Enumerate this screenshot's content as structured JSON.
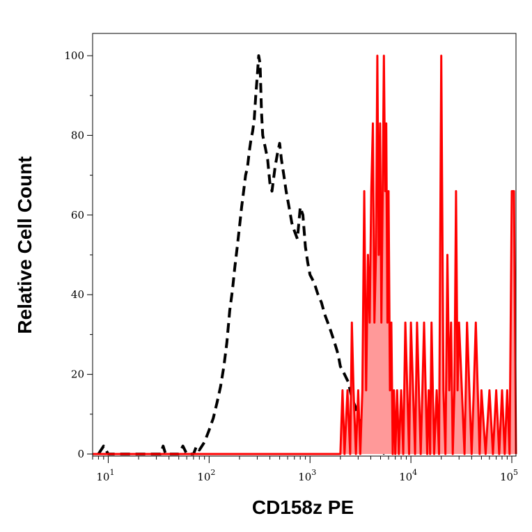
{
  "chart_data": {
    "type": "area",
    "title": "",
    "xlabel": "CD158z PE",
    "ylabel": "Relative Cell Count",
    "x_scale": "log",
    "xlim": [
      7,
      110000
    ],
    "ylim": [
      0,
      100
    ],
    "grid": false,
    "x_ticks": [
      {
        "value": 10,
        "base": "10",
        "exp": "1"
      },
      {
        "value": 100,
        "base": "10",
        "exp": "2"
      },
      {
        "value": 1000,
        "base": "10",
        "exp": "3"
      },
      {
        "value": 10000,
        "base": "10",
        "exp": "4"
      },
      {
        "value": 100000,
        "base": "10",
        "exp": "5"
      }
    ],
    "y_ticks": [
      {
        "value": 0,
        "label": "0"
      },
      {
        "value": 20,
        "label": "20"
      },
      {
        "value": 40,
        "label": "40"
      },
      {
        "value": 60,
        "label": "60"
      },
      {
        "value": 80,
        "label": "80"
      },
      {
        "value": 100,
        "label": "100"
      }
    ],
    "series": [
      {
        "style": "dashed",
        "color": "#000000",
        "fill": "none",
        "points": [
          [
            8,
            0
          ],
          [
            9,
            2
          ],
          [
            10,
            0
          ],
          [
            20,
            0
          ],
          [
            33,
            0
          ],
          [
            35,
            2
          ],
          [
            37,
            0
          ],
          [
            50,
            0
          ],
          [
            55,
            2
          ],
          [
            60,
            0
          ],
          [
            70,
            0
          ],
          [
            75,
            2
          ],
          [
            80,
            1
          ],
          [
            90,
            3
          ],
          [
            100,
            6
          ],
          [
            110,
            9
          ],
          [
            120,
            13
          ],
          [
            130,
            17
          ],
          [
            140,
            22
          ],
          [
            150,
            28
          ],
          [
            160,
            36
          ],
          [
            170,
            41
          ],
          [
            180,
            47
          ],
          [
            190,
            52
          ],
          [
            200,
            57
          ],
          [
            210,
            62
          ],
          [
            220,
            66
          ],
          [
            230,
            70
          ],
          [
            240,
            72
          ],
          [
            250,
            76
          ],
          [
            260,
            79
          ],
          [
            270,
            81
          ],
          [
            280,
            84
          ],
          [
            290,
            90
          ],
          [
            300,
            95
          ],
          [
            310,
            100
          ],
          [
            320,
            98
          ],
          [
            330,
            86
          ],
          [
            340,
            80
          ],
          [
            360,
            77
          ],
          [
            380,
            74
          ],
          [
            400,
            68
          ],
          [
            420,
            66
          ],
          [
            450,
            72
          ],
          [
            480,
            76
          ],
          [
            500,
            78
          ],
          [
            520,
            74
          ],
          [
            550,
            70
          ],
          [
            580,
            66
          ],
          [
            620,
            62
          ],
          [
            660,
            58
          ],
          [
            700,
            56
          ],
          [
            750,
            54
          ],
          [
            800,
            62
          ],
          [
            850,
            60
          ],
          [
            900,
            52
          ],
          [
            950,
            48
          ],
          [
            1000,
            45
          ],
          [
            1100,
            43
          ],
          [
            1200,
            40
          ],
          [
            1300,
            38
          ],
          [
            1400,
            35
          ],
          [
            1500,
            33
          ],
          [
            1600,
            31
          ],
          [
            1700,
            29
          ],
          [
            1800,
            27
          ],
          [
            1900,
            25
          ],
          [
            2000,
            22
          ],
          [
            2200,
            20
          ],
          [
            2400,
            18
          ],
          [
            2600,
            14
          ],
          [
            2800,
            12
          ],
          [
            3000,
            9
          ],
          [
            3300,
            7
          ],
          [
            3600,
            5
          ],
          [
            4000,
            3
          ],
          [
            4500,
            2
          ],
          [
            5000,
            1
          ],
          [
            5500,
            0
          ]
        ]
      },
      {
        "style": "solid",
        "color": "#ff0000",
        "fill": "#ff9999",
        "points": [
          [
            7,
            0
          ],
          [
            2000,
            0
          ],
          [
            2100,
            16
          ],
          [
            2200,
            0
          ],
          [
            2350,
            16
          ],
          [
            2500,
            0
          ],
          [
            2600,
            33
          ],
          [
            2700,
            16
          ],
          [
            2850,
            0
          ],
          [
            3000,
            16
          ],
          [
            3150,
            0
          ],
          [
            3300,
            16
          ],
          [
            3450,
            66
          ],
          [
            3600,
            16
          ],
          [
            3750,
            50
          ],
          [
            3900,
            33
          ],
          [
            4050,
            66
          ],
          [
            4200,
            83
          ],
          [
            4350,
            33
          ],
          [
            4500,
            50
          ],
          [
            4650,
            100
          ],
          [
            4800,
            50
          ],
          [
            4950,
            83
          ],
          [
            5100,
            33
          ],
          [
            5250,
            66
          ],
          [
            5400,
            100
          ],
          [
            5550,
            66
          ],
          [
            5700,
            83
          ],
          [
            5850,
            33
          ],
          [
            6000,
            66
          ],
          [
            6200,
            16
          ],
          [
            6400,
            33
          ],
          [
            6600,
            0
          ],
          [
            6800,
            16
          ],
          [
            7000,
            0
          ],
          [
            7300,
            16
          ],
          [
            7600,
            0
          ],
          [
            8000,
            16
          ],
          [
            8400,
            0
          ],
          [
            8800,
            33
          ],
          [
            9200,
            16
          ],
          [
            9600,
            0
          ],
          [
            10000,
            33
          ],
          [
            10500,
            16
          ],
          [
            11000,
            0
          ],
          [
            11500,
            33
          ],
          [
            12000,
            16
          ],
          [
            12500,
            0
          ],
          [
            13000,
            16
          ],
          [
            13500,
            33
          ],
          [
            14000,
            16
          ],
          [
            14500,
            0
          ],
          [
            15000,
            16
          ],
          [
            15500,
            0
          ],
          [
            16000,
            33
          ],
          [
            16500,
            16
          ],
          [
            17000,
            0
          ],
          [
            18000,
            16
          ],
          [
            19000,
            0
          ],
          [
            20000,
            100
          ],
          [
            21000,
            16
          ],
          [
            22000,
            0
          ],
          [
            23000,
            50
          ],
          [
            24000,
            16
          ],
          [
            25000,
            33
          ],
          [
            26000,
            0
          ],
          [
            27000,
            16
          ],
          [
            28000,
            66
          ],
          [
            29000,
            16
          ],
          [
            30000,
            33
          ],
          [
            32000,
            16
          ],
          [
            34000,
            0
          ],
          [
            36000,
            33
          ],
          [
            38000,
            16
          ],
          [
            40000,
            0
          ],
          [
            42000,
            16
          ],
          [
            44000,
            33
          ],
          [
            46000,
            16
          ],
          [
            48000,
            0
          ],
          [
            50000,
            16
          ],
          [
            55000,
            0
          ],
          [
            60000,
            16
          ],
          [
            65000,
            0
          ],
          [
            70000,
            16
          ],
          [
            75000,
            0
          ],
          [
            80000,
            16
          ],
          [
            85000,
            0
          ],
          [
            90000,
            16
          ],
          [
            95000,
            0
          ],
          [
            100000,
            66
          ],
          [
            105000,
            66
          ],
          [
            110000,
            0
          ]
        ]
      }
    ]
  }
}
